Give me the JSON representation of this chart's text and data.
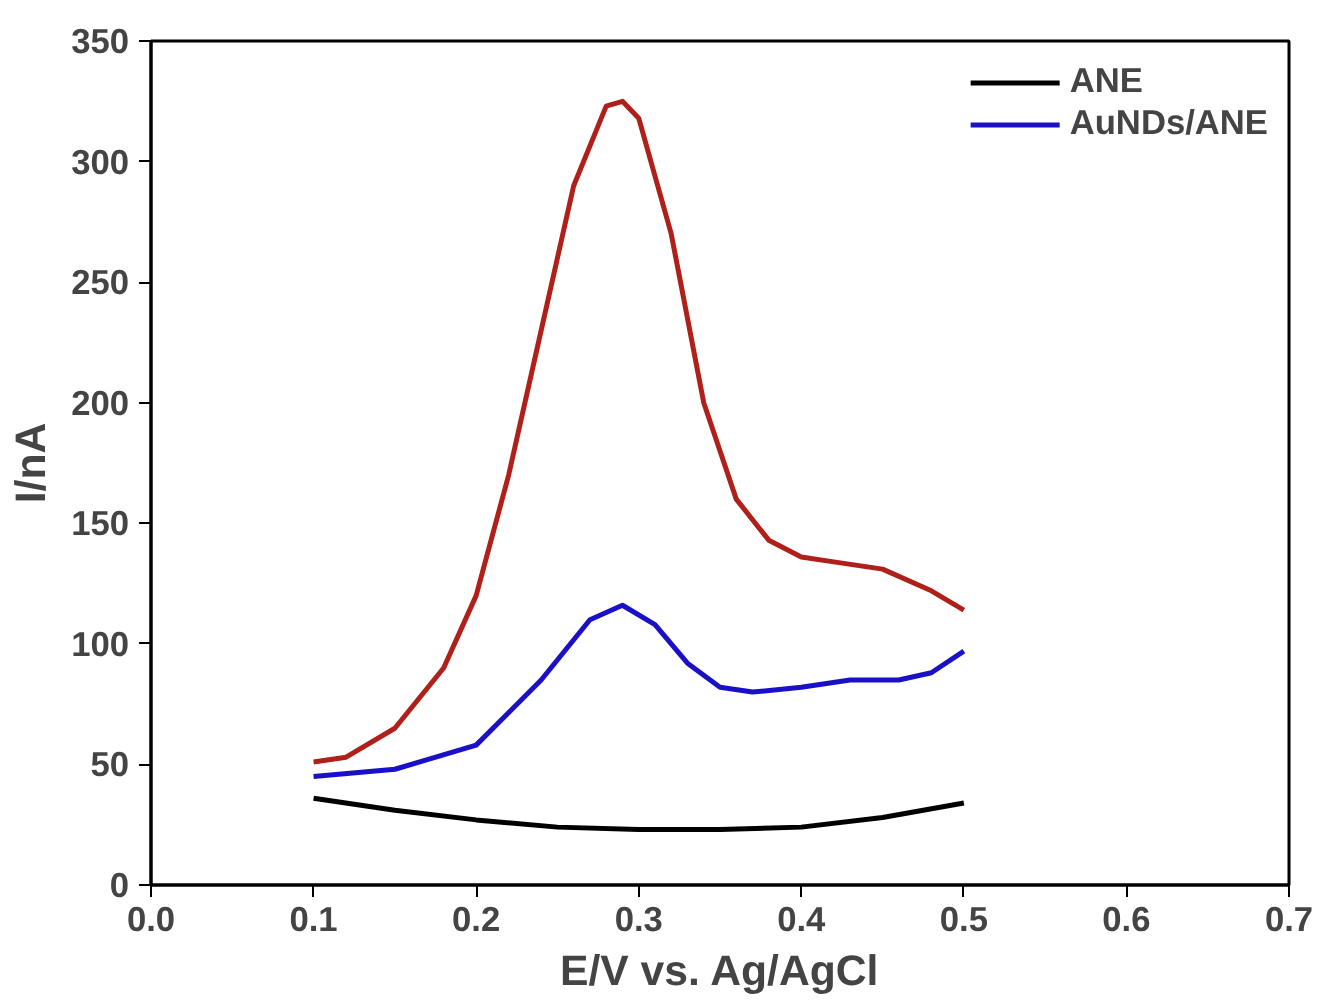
{
  "chart_data": {
    "type": "line",
    "xlabel": "E/V vs. Ag/AgCl",
    "ylabel": "I/nA",
    "xlim": [
      0.0,
      0.7
    ],
    "xticks": [
      {
        "value": 0,
        "label": "0.0"
      },
      0.1,
      0.2,
      0.3,
      0.4,
      0.5,
      0.6,
      0.7
    ],
    "ylim": [
      0,
      350
    ],
    "yticks": [
      0,
      50,
      100,
      150,
      200,
      250,
      300,
      350
    ],
    "grid": false,
    "legend": "top right",
    "line_style": "solid",
    "marker": "none",
    "series": [
      {
        "name": "ANE",
        "color": "#000000",
        "x": [
          0.1,
          0.15,
          0.2,
          0.25,
          0.3,
          0.35,
          0.4,
          0.45,
          0.5
        ],
        "values": [
          36,
          31,
          27,
          24,
          23,
          23,
          24,
          28,
          34
        ]
      },
      {
        "name": "AuNDs/ANE",
        "color": "#1a10c8",
        "x": [
          0.1,
          0.15,
          0.2,
          0.24,
          0.27,
          0.29,
          0.31,
          0.33,
          0.35,
          0.37,
          0.4,
          0.43,
          0.46,
          0.48,
          0.5
        ],
        "values": [
          45,
          48,
          58,
          85,
          110,
          116,
          108,
          92,
          82,
          80,
          82,
          85,
          85,
          88,
          97
        ]
      },
      {
        "color": "#b0201a",
        "x": [
          0.1,
          0.12,
          0.15,
          0.18,
          0.2,
          0.22,
          0.24,
          0.26,
          0.28,
          0.29,
          0.3,
          0.32,
          0.34,
          0.36,
          0.38,
          0.4,
          0.42,
          0.45,
          0.48,
          0.5
        ],
        "values": [
          51,
          53,
          65,
          90,
          120,
          170,
          230,
          290,
          323,
          325,
          318,
          270,
          200,
          160,
          143,
          136,
          134,
          131,
          122,
          114
        ]
      }
    ]
  }
}
